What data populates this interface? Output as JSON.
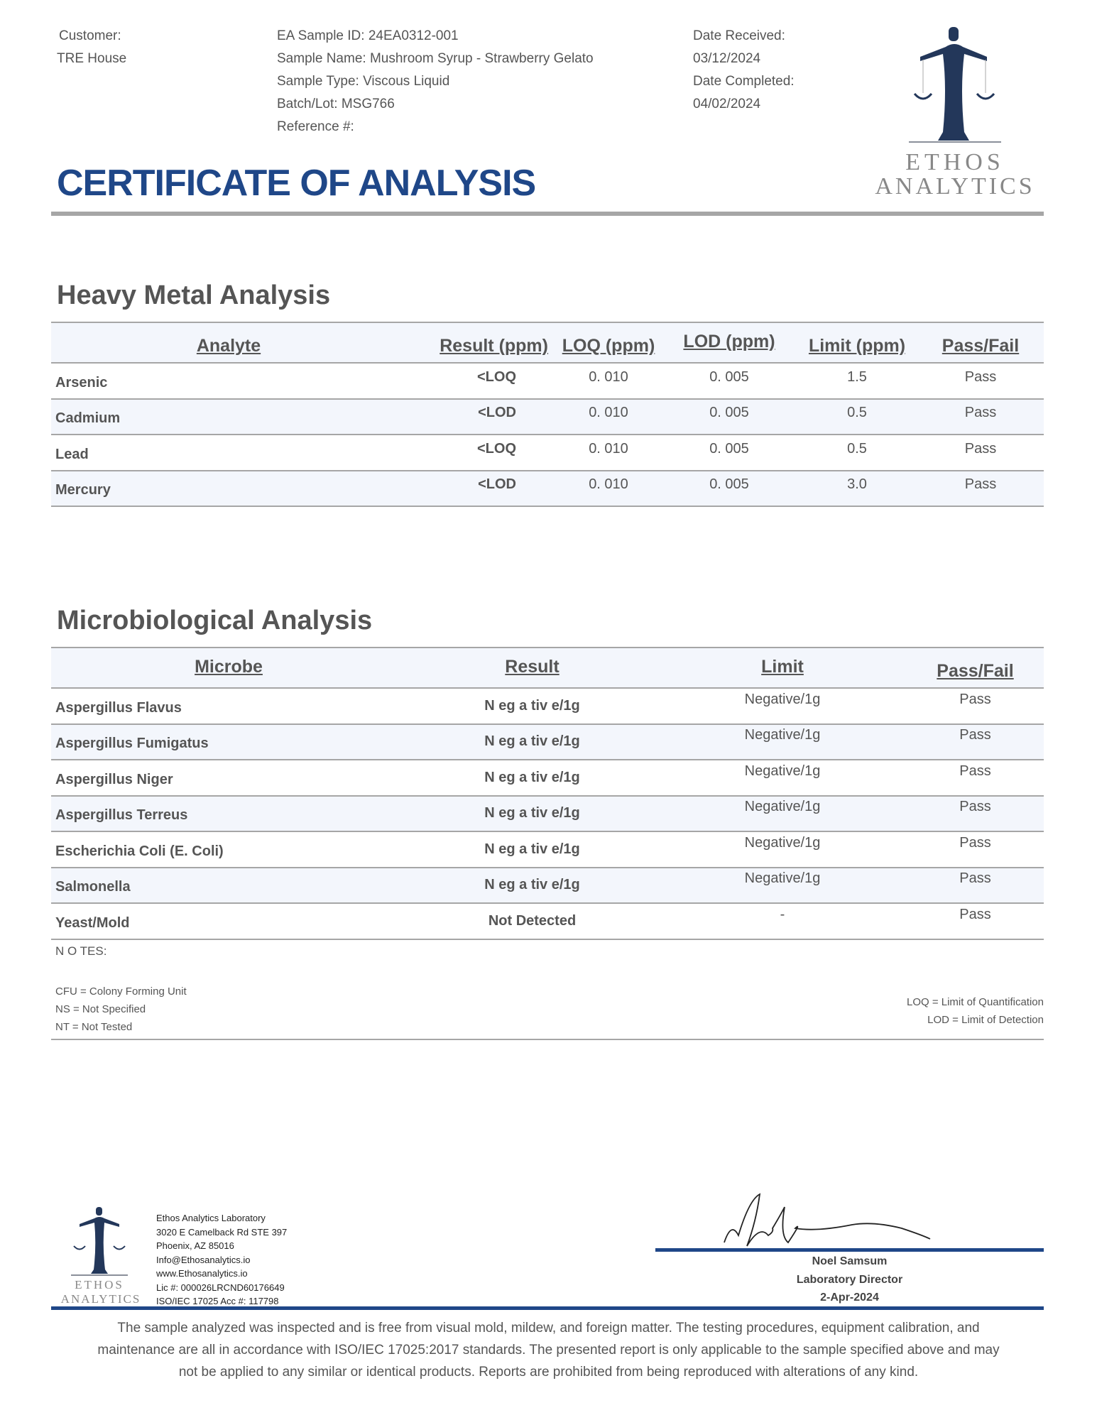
{
  "header": {
    "customer_label": "Customer:",
    "customer": "TRE House",
    "sample_id": "EA Sample ID: 24EA0312-001",
    "sample_name": "Sample Name: Mushroom Syrup - Strawberry Gelato",
    "sample_type": "Sample Type: Viscous Liquid",
    "batch": "Batch/Lot: MSG766",
    "reference": "Reference #:",
    "date_received_label": "Date Received:",
    "date_received": "03/12/2024",
    "date_completed_label": "Date Completed:",
    "date_completed": "04/02/2024",
    "logo_line1": "ETHOS",
    "logo_line2": "ANALYTICS",
    "title": "CERTIFICATE OF ANALYSIS"
  },
  "heavy_metals": {
    "heading": "Heavy Metal Analysis",
    "columns": [
      "Analyte",
      "Result (ppm)",
      "LOQ (ppm)",
      "LOD (ppm)",
      "Limit (ppm)",
      "Pass/Fail"
    ],
    "rows": [
      [
        "Arsenic",
        "<LOQ",
        "0. 010",
        "0. 005",
        "1.5",
        "Pass"
      ],
      [
        "Cadmium",
        "<LOD",
        "0. 010",
        "0. 005",
        "0.5",
        "Pass"
      ],
      [
        "Lead",
        "<LOQ",
        "0. 010",
        "0. 005",
        "0.5",
        "Pass"
      ],
      [
        "Mercury",
        "<LOD",
        "0. 010",
        "0. 005",
        "3.0",
        "Pass"
      ]
    ]
  },
  "micro": {
    "heading": "Microbiological Analysis",
    "columns": [
      "Microbe",
      "Result",
      "Limit",
      "Pass/Fail"
    ],
    "rows": [
      [
        "Aspergillus Flavus",
        "N eg a tiv e/1g",
        "Negative/1g",
        "Pass"
      ],
      [
        "Aspergillus Fumigatus",
        "N eg a tiv e/1g",
        "Negative/1g",
        "Pass"
      ],
      [
        "Aspergillus Niger",
        "N eg a tiv e/1g",
        "Negative/1g",
        "Pass"
      ],
      [
        "Aspergillus Terreus",
        "N eg a tiv e/1g",
        "Negative/1g",
        "Pass"
      ],
      [
        "Escherichia Coli (E. Coli)",
        "N eg a tiv e/1g",
        "Negative/1g",
        "Pass"
      ],
      [
        "Salmonella",
        "N eg a tiv e/1g",
        "Negative/1g",
        "Pass"
      ],
      [
        "Yeast/Mold",
        "Not Detected",
        "-",
        "Pass"
      ]
    ]
  },
  "notes": {
    "label": "N O TES:",
    "left": [
      "CFU = Colony Forming Unit",
      "NS = Not Specified",
      "NT = Not Tested"
    ],
    "right": [
      "LOQ = Limit of Quantification",
      "LOD = Limit of Detection"
    ]
  },
  "footer": {
    "address": [
      "Ethos Analytics Laboratory",
      "3020 E Camelback Rd STE 397",
      "Phoenix, AZ 85016",
      "Info@Ethosanalytics.io",
      "www.Ethosanalytics.io",
      "Lic #: 000026LRCND60176649",
      "ISO/IEC 17025 Acc #: 117798"
    ],
    "signer_name": "Noel Samsum",
    "signer_title": "Laboratory Director",
    "sign_date": "2-Apr-2024",
    "disclaimer": [
      "The sample analyzed was inspected and is free from visual mold, mildew, and foreign matter. The testing procedures, equipment calibration, and",
      "maintenance are all in accordance with ISO/IEC 17025:2017 standards. The presented report is only applicable to the sample specified above and may",
      "not be applied to any similar or identical products. Reports are prohibited from being reproduced with alterations of any kind."
    ]
  },
  "colors": {
    "brand_blue": "#1f4788",
    "logo_navy": "#23375a",
    "gray": "#a6a6a6"
  }
}
